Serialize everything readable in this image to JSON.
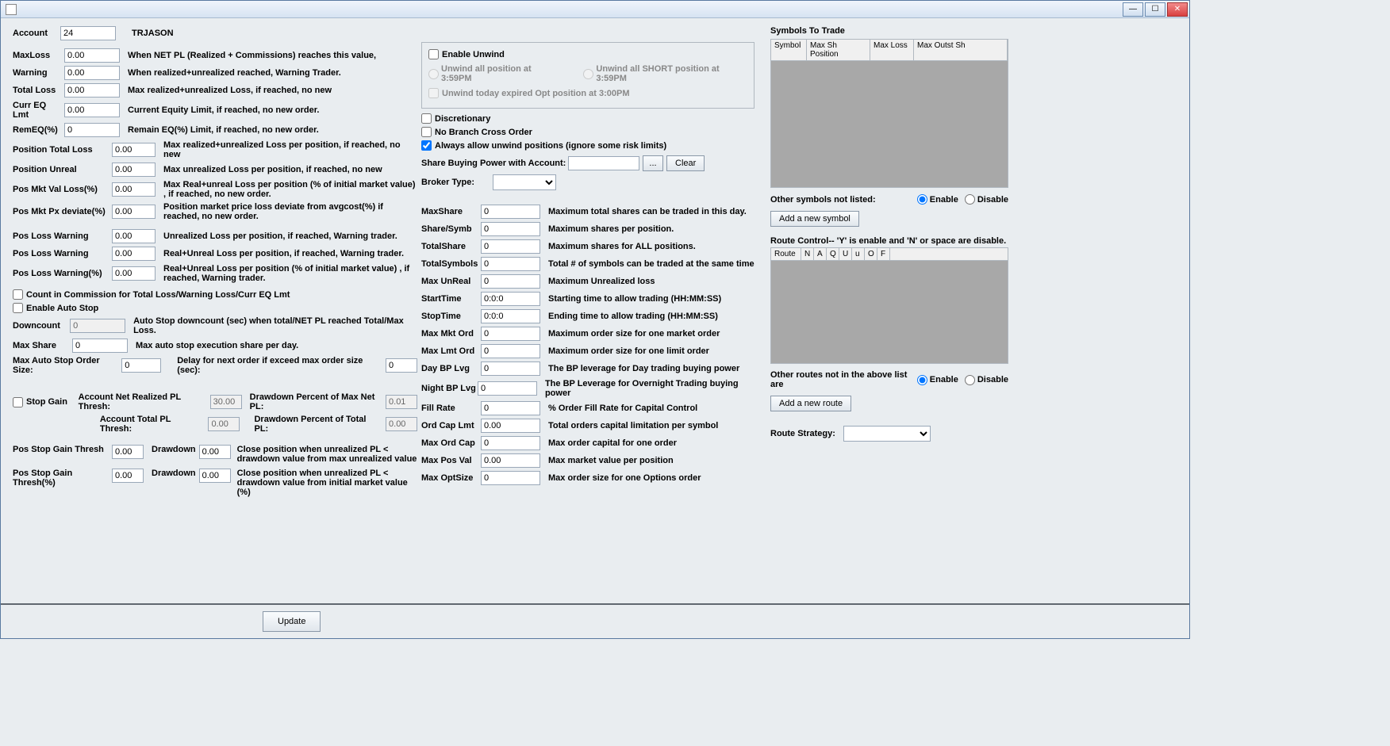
{
  "account": {
    "label": "Account",
    "value": "24",
    "name": "TRJASON"
  },
  "left": {
    "maxLoss": {
      "label": "MaxLoss",
      "value": "0.00",
      "desc": "When NET PL (Realized + Commissions) reaches this value,"
    },
    "warning": {
      "label": "Warning",
      "value": "0.00",
      "desc": "When realized+unrealized reached, Warning Trader."
    },
    "totalLoss": {
      "label": "Total Loss",
      "value": "0.00",
      "desc": "Max realized+unrealized Loss, if reached, no new"
    },
    "currEQLmt": {
      "label": "Curr EQ Lmt",
      "value": "0.00",
      "desc": "Current Equity Limit, if reached, no new order."
    },
    "remEQ": {
      "label": "RemEQ(%)",
      "value": "0",
      "desc": "Remain EQ(%) Limit, if reached, no new order."
    },
    "posTotalLoss": {
      "label": "Position Total Loss",
      "value": "0.00",
      "desc": "Max realized+unrealized Loss per position, if reached, no new"
    },
    "posUnreal": {
      "label": "Position Unreal",
      "value": "0.00",
      "desc": "Max unrealized Loss per position, if reached, no new"
    },
    "posMktValLoss": {
      "label": "Pos Mkt Val Loss(%)",
      "value": "0.00",
      "desc": "Max Real+unreal Loss per position (% of initial market value) , if reached, no new order."
    },
    "posMktPxDev": {
      "label": "Pos Mkt Px deviate(%)",
      "value": "0.00",
      "desc": "Position market price loss deviate from avgcost(%) if reached, no new order."
    },
    "posLossWarn1": {
      "label": "Pos Loss Warning",
      "value": "0.00",
      "desc": "Unrealized Loss per position, if reached, Warning trader."
    },
    "posLossWarn2": {
      "label": "Pos Loss Warning",
      "value": "0.00",
      "desc": "Real+Unreal Loss per position, if reached, Warning trader."
    },
    "posLossWarnPct": {
      "label": "Pos Loss Warning(%)",
      "value": "0.00",
      "desc": "Real+Unreal Loss per position (% of initial market value) , if reached, Warning trader."
    },
    "countInComm": "Count in Commission for Total Loss/Warning Loss/Curr EQ Lmt",
    "enableAutoStop": "Enable Auto Stop",
    "downcount": {
      "label": "Downcount",
      "value": "0",
      "desc": "Auto Stop downcount (sec) when total/NET PL reached Total/Max Loss."
    },
    "maxShare": {
      "label": "Max Share",
      "value": "0",
      "desc": "Max auto stop execution share per day."
    },
    "maxAutoStop": {
      "label": "Max Auto Stop Order Size:",
      "value": "0",
      "delayLabel": "Delay for next order if exceed max order size (sec):",
      "delayValue": "0"
    },
    "stopGain": {
      "label": "Stop Gain",
      "acctNetRealLabel": "Account Net Realized PL Thresh:",
      "acctNetRealValue": "30.00",
      "ddMaxNetLabel": "Drawdown Percent of Max Net PL:",
      "ddMaxNetValue": "0.01",
      "acctTotalLabel": "Account Total PL Thresh:",
      "acctTotalValue": "0.00",
      "ddTotalLabel": "Drawdown Percent of Total PL:",
      "ddTotalValue": "0.00"
    },
    "posStopGain": {
      "label": "Pos Stop Gain Thresh",
      "value": "0.00",
      "ddLabel": "Drawdown",
      "ddValue": "0.00",
      "desc": "Close position when unrealized PL < drawdown value from max unrealized value"
    },
    "posStopGainPct": {
      "label": "Pos Stop Gain Thresh(%)",
      "value": "0.00",
      "ddLabel": "Drawdown",
      "ddValue": "0.00",
      "desc": "Close position when unrealized PL < drawdown value from initial market value (%)"
    }
  },
  "unwind": {
    "enable": "Enable Unwind",
    "opt1": "Unwind all position at 3:59PM",
    "opt2": "Unwind all SHORT position at 3:59PM",
    "opt3": "Unwind today expired Opt position at 3:00PM"
  },
  "mid": {
    "discretionary": "Discretionary",
    "noBranch": "No Branch Cross Order",
    "alwaysUnwind": "Always allow unwind positions (ignore some risk limits)",
    "shareBP": {
      "label": "Share Buying Power with Account:",
      "value": "",
      "dots": "...",
      "clear": "Clear"
    },
    "brokerType": {
      "label": "Broker Type:",
      "value": ""
    },
    "rows": [
      {
        "label": "MaxShare",
        "value": "0",
        "desc": "Maximum total shares can be traded in this day."
      },
      {
        "label": "Share/Symb",
        "value": "0",
        "desc": "Maximum shares per position."
      },
      {
        "label": "TotalShare",
        "value": "0",
        "desc": "Maximum shares for ALL positions."
      },
      {
        "label": "TotalSymbols",
        "value": "0",
        "desc": "Total # of symbols can be traded at the same time"
      },
      {
        "label": "Max UnReal",
        "value": "0",
        "desc": "Maximum Unrealized loss"
      },
      {
        "label": "StartTime",
        "value": "0:0:0",
        "desc": "Starting time to allow trading (HH:MM:SS)"
      },
      {
        "label": "StopTime",
        "value": "0:0:0",
        "desc": "Ending time to allow trading (HH:MM:SS)"
      },
      {
        "label": "Max Mkt Ord",
        "value": "0",
        "desc": "Maximum order size for one market order"
      },
      {
        "label": "Max Lmt Ord",
        "value": "0",
        "desc": "Maximum order size for one limit order"
      },
      {
        "label": "Day BP Lvg",
        "value": "0",
        "desc": "The BP leverage for Day trading buying power"
      },
      {
        "label": "Night BP Lvg",
        "value": "0",
        "desc": "The BP Leverage for Overnight Trading buying power"
      },
      {
        "label": "Fill Rate",
        "value": "0",
        "desc": "%  Order Fill Rate for Capital Control"
      },
      {
        "label": "Ord Cap Lmt",
        "value": "0.00",
        "desc": "Total orders capital limitation per symbol"
      },
      {
        "label": "Max Ord Cap",
        "value": "0",
        "desc": "Max order capital for one order"
      },
      {
        "label": "Max Pos Val",
        "value": "0.00",
        "desc": "Max market value per position"
      },
      {
        "label": "Max OptSize",
        "value": "0",
        "desc": "Max order size for one Options order"
      }
    ]
  },
  "right": {
    "title": "Symbols To Trade",
    "cols": [
      "Symbol",
      "Max Sh Position",
      "Max Loss",
      "Max Outst Sh"
    ],
    "otherSymbols": "Other symbols not listed:",
    "enable": "Enable",
    "disable": "Disable",
    "addSymbol": "Add a new symbol",
    "routeControl": "Route Control-- 'Y' is enable and 'N' or space are disable.",
    "routeCols": [
      "Route",
      "N",
      "A",
      "Q",
      "U",
      "u",
      "O",
      "F"
    ],
    "otherRoutes": "Other routes not in the above list are",
    "addRoute": "Add a new route",
    "routeStrategy": "Route Strategy:"
  },
  "update": "Update"
}
